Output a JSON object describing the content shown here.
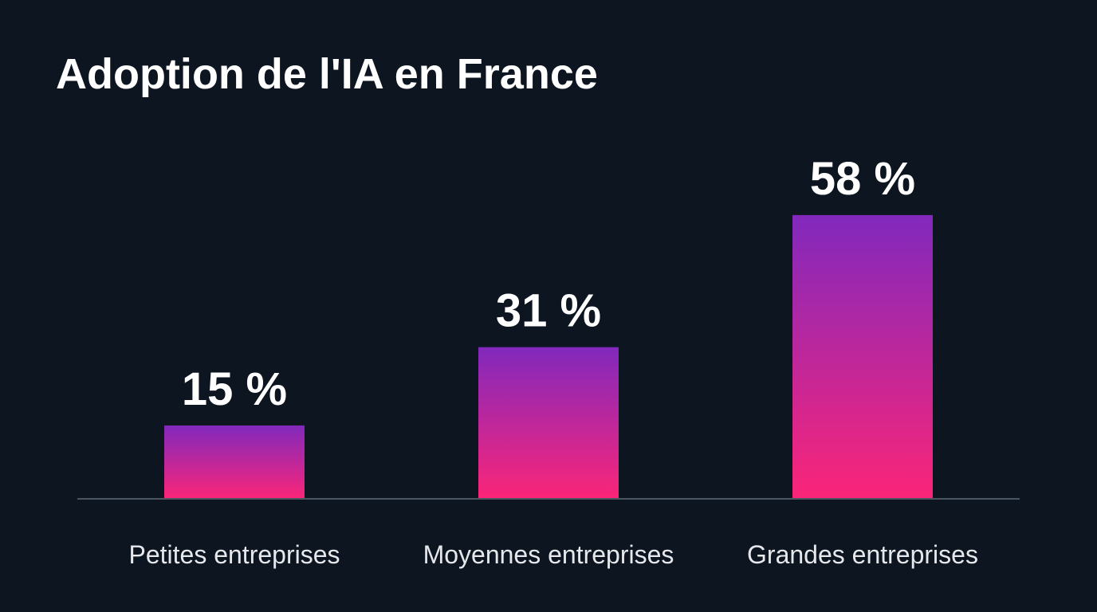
{
  "colors": {
    "background": "#0c1520",
    "bar_top": "#8129bd",
    "bar_bottom": "#fb2578",
    "baseline": "#4a5564",
    "text": "#ffffff"
  },
  "chart_data": {
    "type": "bar",
    "title": "Adoption de l'IA en France",
    "categories": [
      "Petites entreprises",
      "Moyennes entreprises",
      "Grandes entreprises"
    ],
    "values": [
      15,
      31,
      58
    ],
    "value_labels": [
      "15 %",
      "31 %",
      "58 %"
    ],
    "unit": "%",
    "xlabel": "",
    "ylabel": "",
    "ylim": [
      0,
      100
    ],
    "grid": false,
    "legend": "none"
  }
}
